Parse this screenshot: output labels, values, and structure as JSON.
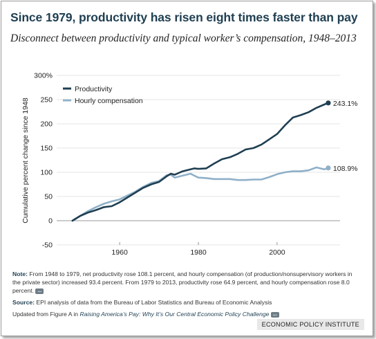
{
  "title": "Since 1979, productivity has risen eight times faster than pay",
  "subtitle": "Disconnect between productivity and typical worker’s compensation, 1948–2013",
  "colors": {
    "productivity": "#1f3f52",
    "compensation": "#8fb0c8",
    "title": "#1f3f52"
  },
  "chart_data": {
    "type": "line",
    "ylabel": "Cumulative percent change since 1948",
    "xlabel": "",
    "ylim": [
      -50,
      300
    ],
    "xlim": [
      1944,
      2016
    ],
    "y_ticks": [
      "-50",
      "0",
      "50",
      "100",
      "150",
      "200",
      "250",
      "300%"
    ],
    "y_tick_values": [
      -50,
      0,
      50,
      100,
      150,
      200,
      250,
      300
    ],
    "x_ticks": [
      "1960",
      "1980",
      "2000"
    ],
    "x_tick_values": [
      1960,
      1980,
      2000
    ],
    "grid": true,
    "legend_position": "top-left",
    "x": [
      1948,
      1950,
      1952,
      1954,
      1956,
      1958,
      1960,
      1962,
      1964,
      1966,
      1968,
      1970,
      1972,
      1973,
      1974,
      1976,
      1978,
      1979,
      1980,
      1982,
      1984,
      1986,
      1988,
      1990,
      1992,
      1994,
      1996,
      1998,
      2000,
      2002,
      2004,
      2006,
      2008,
      2010,
      2012,
      2013
    ],
    "series": [
      {
        "name": "Productivity",
        "values": [
          0,
          10,
          17,
          22,
          28,
          30,
          38,
          48,
          58,
          68,
          75,
          80,
          92,
          97,
          95,
          102,
          106,
          108,
          107,
          108,
          118,
          127,
          131,
          138,
          147,
          150,
          157,
          168,
          179,
          197,
          213,
          218,
          224,
          233,
          240,
          243.1
        ],
        "end_label": "243.1%"
      },
      {
        "name": "Hourly compensation",
        "values": [
          0,
          10,
          20,
          28,
          35,
          40,
          44,
          52,
          60,
          70,
          78,
          82,
          94,
          95,
          89,
          93,
          97,
          93,
          89,
          88,
          86,
          86,
          86,
          84,
          84,
          85,
          85,
          90,
          96,
          100,
          102,
          102,
          104,
          110,
          106,
          108.9
        ],
        "end_label": "108.9%"
      }
    ]
  },
  "footnotes": {
    "note_label": "Note:",
    "note_text": "From 1948 to 1979, net productivity rose 108.1 percent, and hourly compensation (of production/nonsupervisory workers in the private sector) increased 93.4 percent. From 1979 to 2013, productivity rose 64.9 percent, and hourly compensation rose 8.0 percent.",
    "source_label": "Source:",
    "source_text": "EPI analysis of data from the Bureau of Labor Statistics and Bureau of Economic Analysis",
    "updated_prefix": "Updated from Figure A in",
    "report_title": "Raising America’s Pay: Why It’s Our Central Economic Policy Challenge",
    "more_label": "..."
  },
  "brand": "ECONOMIC POLICY INSTITUTE"
}
